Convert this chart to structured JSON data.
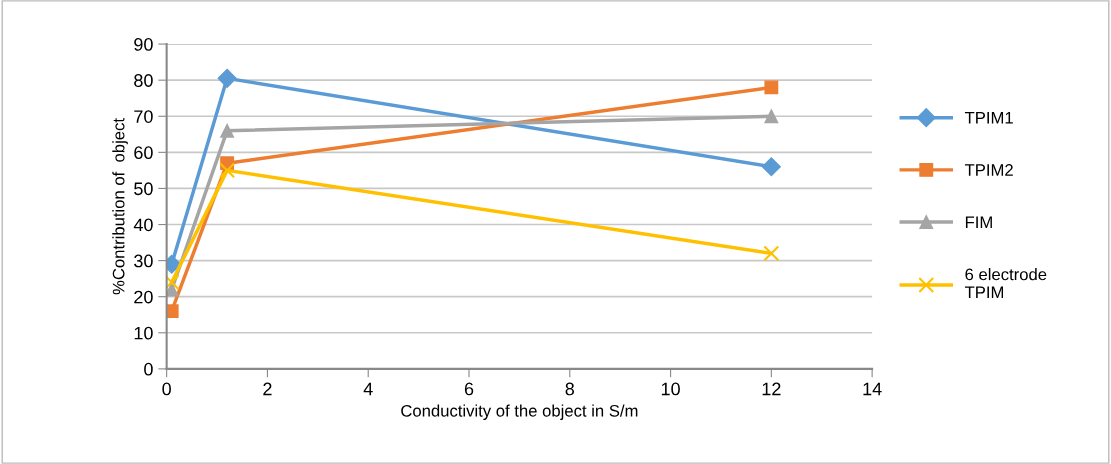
{
  "chart_data": {
    "type": "line",
    "xlabel": "Conductivity of the object in S/m",
    "ylabel": "%Contribution of  object",
    "x": [
      0.1,
      1.2,
      12
    ],
    "series": [
      {
        "name": "TPIM1",
        "color": "#5b9bd5",
        "marker": "diamond",
        "values": [
          29,
          80.5,
          56
        ]
      },
      {
        "name": "TPIM2",
        "color": "#ed7d31",
        "marker": "square",
        "values": [
          16,
          57,
          78
        ]
      },
      {
        "name": "FIM",
        "color": "#a5a5a5",
        "marker": "triangle",
        "values": [
          22,
          66,
          70
        ]
      },
      {
        "name": "6 electrode\nTPIM",
        "color": "#ffc000",
        "marker": "cross",
        "values": [
          24,
          55,
          32
        ]
      }
    ],
    "xlim": [
      0,
      14
    ],
    "xticks": [
      0,
      2,
      4,
      6,
      8,
      10,
      12,
      14
    ],
    "ylim": [
      0,
      90
    ],
    "yticks": [
      0,
      10,
      20,
      30,
      40,
      50,
      60,
      70,
      80,
      90
    ],
    "grid": "y",
    "legend": "right",
    "line_style": "solid"
  }
}
